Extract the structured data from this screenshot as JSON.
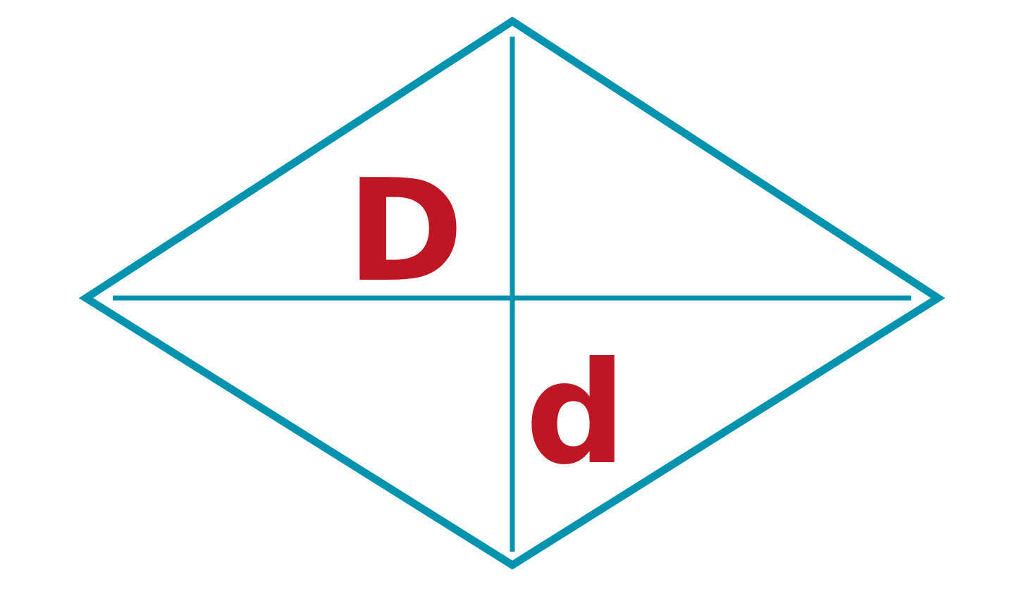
{
  "diagram": {
    "shape": "rhombus",
    "stroke_color": "#0093b0",
    "label_color": "#be1622",
    "labels": {
      "major_diagonal": "D",
      "minor_diagonal": "d"
    }
  }
}
